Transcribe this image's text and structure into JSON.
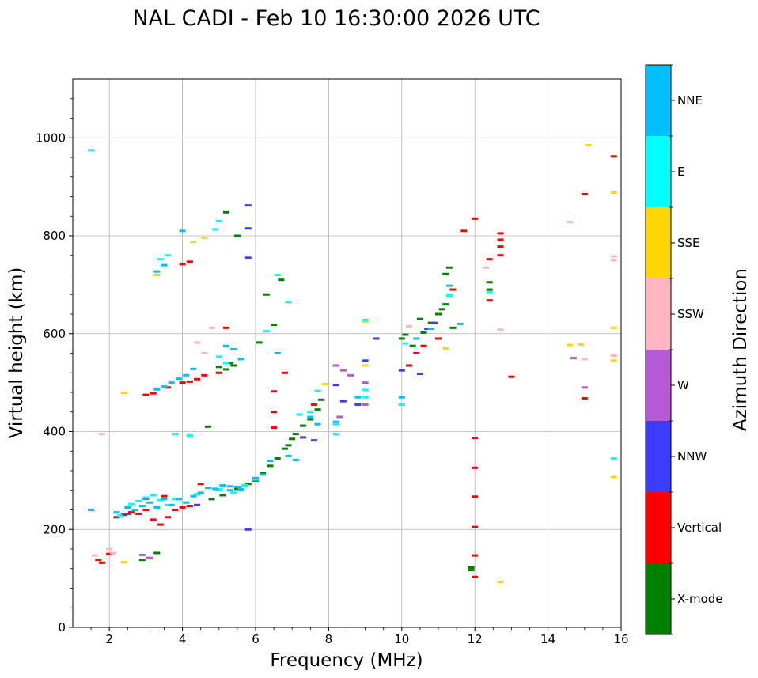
{
  "chart_data": {
    "type": "scatter",
    "title": "NAL CADI - Feb 10 16:30:00 2026 UTC",
    "xlabel": "Frequency (MHz)",
    "ylabel": "Virtual height (km)",
    "xlim": [
      1,
      16
    ],
    "ylim": [
      0,
      1120
    ],
    "xticks": [
      2,
      4,
      6,
      8,
      10,
      12,
      14,
      16
    ],
    "yticks": [
      0,
      200,
      400,
      600,
      800,
      1000
    ],
    "grid": true,
    "colorbar": {
      "label": "Azimuth Direction",
      "categories": [
        {
          "name": "X-mode",
          "color": "#008000"
        },
        {
          "name": "Vertical",
          "color": "#ff0000"
        },
        {
          "name": "NNW",
          "color": "#3c3cff"
        },
        {
          "name": "W",
          "color": "#b45ad2"
        },
        {
          "name": "SSW",
          "color": "#ffb6c1"
        },
        {
          "name": "SSE",
          "color": "#ffd700"
        },
        {
          "name": "E",
          "color": "#00ffff"
        },
        {
          "name": "NNE",
          "color": "#00bfff"
        }
      ]
    },
    "series": [
      {
        "name": "X-mode",
        "points": [
          [
            2.9,
            138
          ],
          [
            3.3,
            152
          ],
          [
            4.8,
            262
          ],
          [
            5.1,
            270
          ],
          [
            5.3,
            540
          ],
          [
            5.2,
            527
          ],
          [
            5.5,
            283
          ],
          [
            5.8,
            293
          ],
          [
            6.0,
            300
          ],
          [
            6.2,
            315
          ],
          [
            6.4,
            330
          ],
          [
            6.6,
            345
          ],
          [
            6.8,
            365
          ],
          [
            6.9,
            372
          ],
          [
            7.0,
            385
          ],
          [
            7.1,
            395
          ],
          [
            7.3,
            412
          ],
          [
            7.5,
            425
          ],
          [
            7.7,
            445
          ],
          [
            7.8,
            465
          ],
          [
            6.3,
            680
          ],
          [
            6.7,
            710
          ],
          [
            6.5,
            618
          ],
          [
            10.0,
            590
          ],
          [
            10.1,
            598
          ],
          [
            10.3,
            575
          ],
          [
            10.5,
            630
          ],
          [
            10.6,
            602
          ],
          [
            10.8,
            622
          ],
          [
            11.0,
            640
          ],
          [
            11.1,
            650
          ],
          [
            11.2,
            660
          ],
          [
            11.3,
            735
          ],
          [
            11.2,
            722
          ],
          [
            11.4,
            612
          ],
          [
            11.9,
            122
          ],
          [
            11.9,
            117
          ],
          [
            12.4,
            690
          ],
          [
            12.4,
            705
          ],
          [
            5.2,
            848
          ],
          [
            5.5,
            800
          ],
          [
            4.7,
            410
          ],
          [
            5.0,
            532
          ],
          [
            5.4,
            535
          ],
          [
            6.1,
            582
          ]
        ]
      },
      {
        "name": "Vertical",
        "points": [
          [
            1.7,
            138
          ],
          [
            1.8,
            132
          ],
          [
            2.0,
            150
          ],
          [
            2.2,
            225
          ],
          [
            2.4,
            230
          ],
          [
            2.6,
            235
          ],
          [
            2.8,
            232
          ],
          [
            3.0,
            240
          ],
          [
            3.2,
            220
          ],
          [
            3.4,
            210
          ],
          [
            3.6,
            225
          ],
          [
            3.8,
            240
          ],
          [
            4.0,
            245
          ],
          [
            4.2,
            248
          ],
          [
            3.0,
            475
          ],
          [
            3.2,
            478
          ],
          [
            3.6,
            490
          ],
          [
            4.0,
            500
          ],
          [
            4.2,
            502
          ],
          [
            4.4,
            507
          ],
          [
            4.6,
            515
          ],
          [
            5.0,
            520
          ],
          [
            5.2,
            612
          ],
          [
            4.0,
            742
          ],
          [
            4.2,
            747
          ],
          [
            6.5,
            482
          ],
          [
            6.5,
            440
          ],
          [
            6.8,
            520
          ],
          [
            6.5,
            408
          ],
          [
            7.6,
            455
          ],
          [
            10.2,
            535
          ],
          [
            10.4,
            560
          ],
          [
            10.6,
            575
          ],
          [
            11.0,
            590
          ],
          [
            11.4,
            690
          ],
          [
            11.7,
            810
          ],
          [
            12.0,
            835
          ],
          [
            12.0,
            387
          ],
          [
            12.0,
            326
          ],
          [
            12.0,
            267
          ],
          [
            12.0,
            205
          ],
          [
            12.0,
            147
          ],
          [
            12.0,
            103
          ],
          [
            12.4,
            752
          ],
          [
            12.4,
            668
          ],
          [
            12.7,
            805
          ],
          [
            12.7,
            792
          ],
          [
            12.7,
            778
          ],
          [
            12.7,
            760
          ],
          [
            13.0,
            512
          ],
          [
            15.0,
            885
          ],
          [
            15.0,
            468
          ],
          [
            15.8,
            962
          ],
          [
            3.5,
            268
          ],
          [
            4.5,
            293
          ]
        ]
      },
      {
        "name": "NNW",
        "points": [
          [
            2.5,
            232
          ],
          [
            3.0,
            263
          ],
          [
            5.8,
            862
          ],
          [
            5.8,
            200
          ],
          [
            7.3,
            388
          ],
          [
            7.6,
            382
          ],
          [
            8.2,
            495
          ],
          [
            8.4,
            462
          ],
          [
            8.8,
            455
          ],
          [
            9.0,
            545
          ],
          [
            9.3,
            590
          ],
          [
            10.0,
            525
          ],
          [
            10.5,
            518
          ],
          [
            10.7,
            610
          ],
          [
            10.9,
            622
          ],
          [
            5.8,
            815
          ],
          [
            5.8,
            755
          ],
          [
            4.4,
            250
          ]
        ]
      },
      {
        "name": "W",
        "points": [
          [
            2.9,
            148
          ],
          [
            3.1,
            142
          ],
          [
            8.2,
            535
          ],
          [
            8.4,
            525
          ],
          [
            8.6,
            515
          ],
          [
            9.0,
            455
          ],
          [
            9.0,
            500
          ],
          [
            14.7,
            550
          ],
          [
            15.0,
            490
          ],
          [
            8.3,
            430
          ]
        ]
      },
      {
        "name": "SSW",
        "points": [
          [
            1.6,
            147
          ],
          [
            2.0,
            160
          ],
          [
            2.1,
            152
          ],
          [
            1.8,
            395
          ],
          [
            3.3,
            488
          ],
          [
            4.4,
            582
          ],
          [
            4.6,
            560
          ],
          [
            10.2,
            615
          ],
          [
            12.3,
            735
          ],
          [
            12.7,
            608
          ],
          [
            14.6,
            828
          ],
          [
            15.0,
            548
          ],
          [
            15.8,
            758
          ],
          [
            15.8,
            750
          ],
          [
            15.8,
            555
          ],
          [
            4.8,
            612
          ]
        ]
      },
      {
        "name": "SSE",
        "points": [
          [
            2.4,
            133
          ],
          [
            2.4,
            479
          ],
          [
            3.3,
            720
          ],
          [
            4.6,
            796
          ],
          [
            7.9,
            497
          ],
          [
            9.0,
            535
          ],
          [
            9.0,
            625
          ],
          [
            11.2,
            570
          ],
          [
            12.7,
            93
          ],
          [
            14.6,
            577
          ],
          [
            14.9,
            578
          ],
          [
            15.1,
            985
          ],
          [
            15.8,
            888
          ],
          [
            15.8,
            612
          ],
          [
            15.8,
            545
          ],
          [
            15.8,
            307
          ],
          [
            4.3,
            788
          ],
          [
            2.7,
            240
          ]
        ]
      },
      {
        "name": "E",
        "points": [
          [
            1.5,
            975
          ],
          [
            2.3,
            228
          ],
          [
            2.6,
            252
          ],
          [
            2.8,
            258
          ],
          [
            3.0,
            265
          ],
          [
            3.2,
            270
          ],
          [
            3.4,
            260
          ],
          [
            3.6,
            250
          ],
          [
            3.8,
            262
          ],
          [
            4.4,
            272
          ],
          [
            5.0,
            282
          ],
          [
            5.4,
            275
          ],
          [
            5.7,
            290
          ],
          [
            3.6,
            760
          ],
          [
            3.4,
            752
          ],
          [
            3.8,
            395
          ],
          [
            4.2,
            392
          ],
          [
            5.0,
            553
          ],
          [
            5.2,
            540
          ],
          [
            6.0,
            302
          ],
          [
            6.3,
            605
          ],
          [
            6.6,
            720
          ],
          [
            6.9,
            665
          ],
          [
            7.2,
            435
          ],
          [
            7.5,
            440
          ],
          [
            7.7,
            483
          ],
          [
            8.2,
            415
          ],
          [
            8.2,
            395
          ],
          [
            9.0,
            470
          ],
          [
            9.0,
            485
          ],
          [
            9.0,
            628
          ],
          [
            10.0,
            455
          ],
          [
            10.1,
            580
          ],
          [
            11.3,
            678
          ],
          [
            12.4,
            685
          ],
          [
            15.8,
            345
          ],
          [
            5.0,
            830
          ],
          [
            4.9,
            813
          ]
        ]
      },
      {
        "name": "NNE",
        "points": [
          [
            1.5,
            240
          ],
          [
            2.2,
            235
          ],
          [
            2.5,
            245
          ],
          [
            2.7,
            240
          ],
          [
            2.9,
            248
          ],
          [
            3.1,
            255
          ],
          [
            3.3,
            245
          ],
          [
            3.5,
            262
          ],
          [
            3.7,
            250
          ],
          [
            3.9,
            262
          ],
          [
            4.1,
            255
          ],
          [
            4.3,
            268
          ],
          [
            4.5,
            275
          ],
          [
            4.7,
            285
          ],
          [
            4.9,
            283
          ],
          [
            5.1,
            290
          ],
          [
            5.3,
            280
          ],
          [
            5.5,
            287
          ],
          [
            5.6,
            282
          ],
          [
            6.0,
            305
          ],
          [
            6.2,
            312
          ],
          [
            3.3,
            486
          ],
          [
            3.5,
            492
          ],
          [
            3.7,
            500
          ],
          [
            3.9,
            508
          ],
          [
            4.1,
            515
          ],
          [
            4.3,
            528
          ],
          [
            5.2,
            575
          ],
          [
            5.4,
            568
          ],
          [
            5.6,
            548
          ],
          [
            6.6,
            560
          ],
          [
            7.5,
            430
          ],
          [
            7.7,
            415
          ],
          [
            8.2,
            420
          ],
          [
            8.8,
            470
          ],
          [
            10.0,
            470
          ],
          [
            10.4,
            590
          ],
          [
            10.8,
            610
          ],
          [
            11.3,
            698
          ],
          [
            11.6,
            620
          ],
          [
            3.3,
            727
          ],
          [
            3.5,
            740
          ],
          [
            4.0,
            810
          ],
          [
            5.3,
            288
          ],
          [
            6.4,
            340
          ],
          [
            6.9,
            350
          ],
          [
            7.1,
            342
          ]
        ]
      }
    ]
  }
}
